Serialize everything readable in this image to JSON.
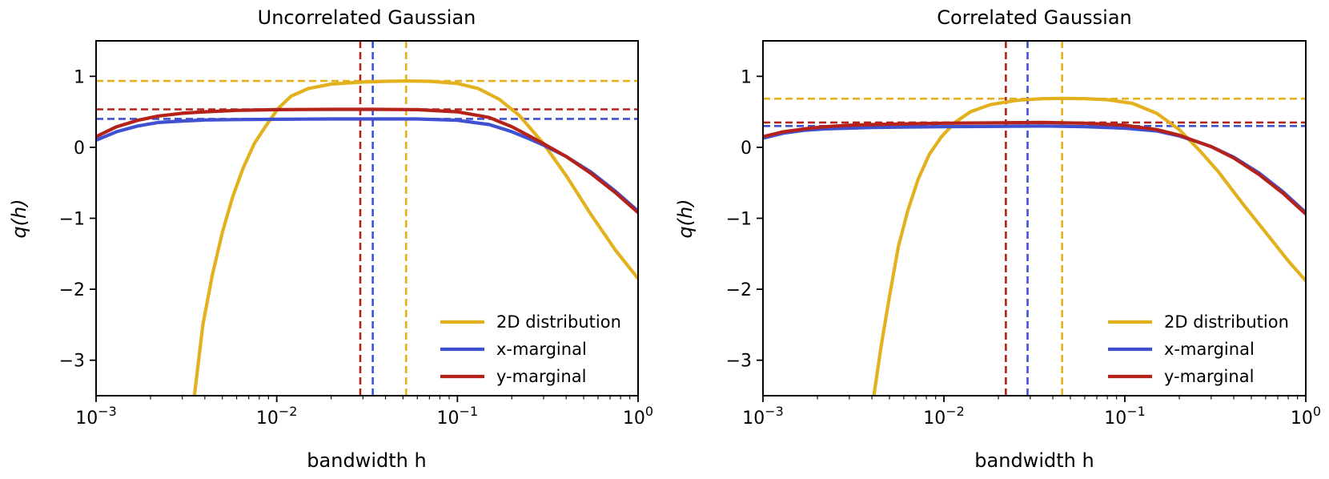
{
  "figure": {
    "colors": {
      "gold": "#e3b11e",
      "blue": "#3f51d1",
      "red": "#b5221a"
    }
  },
  "chart_data": [
    {
      "type": "line",
      "title": "Uncorrelated Gaussian",
      "xlabel": "bandwidth h",
      "ylabel": "q(h)",
      "xscale": "log",
      "xlim": [
        0.001,
        1
      ],
      "ylim": [
        -3.5,
        1.5
      ],
      "xticks": [
        0.001,
        0.01,
        0.1,
        1
      ],
      "xtick_labels": [
        [
          "10",
          "−3"
        ],
        [
          "10",
          "−2"
        ],
        [
          "10",
          "−1"
        ],
        [
          "10",
          "0"
        ]
      ],
      "yticks": [
        1,
        0,
        -1,
        -2,
        -3
      ],
      "ytick_labels": [
        "1",
        "0",
        "−1",
        "−2",
        "−3"
      ],
      "grid": false,
      "legend_position": "lower-right",
      "series": [
        {
          "name": "2D distribution",
          "color": "#e3b11e",
          "x": [
            0.0035,
            0.0039,
            0.0044,
            0.005,
            0.0057,
            0.0065,
            0.0075,
            0.0087,
            0.0102,
            0.012,
            0.015,
            0.02,
            0.03,
            0.04,
            0.052,
            0.07,
            0.1,
            0.13,
            0.17,
            0.22,
            0.3,
            0.4,
            0.55,
            0.75,
            1.0
          ],
          "y": [
            -3.5,
            -2.5,
            -1.8,
            -1.2,
            -0.7,
            -0.3,
            0.05,
            0.3,
            0.55,
            0.72,
            0.83,
            0.89,
            0.92,
            0.93,
            0.935,
            0.93,
            0.9,
            0.83,
            0.68,
            0.45,
            0.05,
            -0.4,
            -0.95,
            -1.45,
            -1.85
          ]
        },
        {
          "name": "x-marginal",
          "color": "#3f51d1",
          "x": [
            0.001,
            0.0013,
            0.0017,
            0.0022,
            0.003,
            0.004,
            0.006,
            0.01,
            0.02,
            0.035,
            0.06,
            0.1,
            0.15,
            0.2,
            0.25,
            0.3,
            0.4,
            0.55,
            0.75,
            1.0
          ],
          "y": [
            0.1,
            0.22,
            0.3,
            0.35,
            0.37,
            0.385,
            0.39,
            0.395,
            0.4,
            0.4,
            0.4,
            0.38,
            0.32,
            0.22,
            0.12,
            0.03,
            -0.13,
            -0.35,
            -0.62,
            -0.9
          ]
        },
        {
          "name": "y-marginal",
          "color": "#b5221a",
          "x": [
            0.001,
            0.0013,
            0.0017,
            0.0022,
            0.003,
            0.004,
            0.006,
            0.01,
            0.02,
            0.035,
            0.06,
            0.1,
            0.15,
            0.2,
            0.25,
            0.3,
            0.4,
            0.55,
            0.75,
            1.0
          ],
          "y": [
            0.15,
            0.29,
            0.38,
            0.44,
            0.48,
            0.5,
            0.52,
            0.53,
            0.535,
            0.535,
            0.53,
            0.5,
            0.42,
            0.29,
            0.16,
            0.05,
            -0.13,
            -0.37,
            -0.64,
            -0.92
          ]
        }
      ],
      "reference_lines": [
        {
          "orientation": "horizontal",
          "value": 0.935,
          "color": "#e3b11e"
        },
        {
          "orientation": "horizontal",
          "value": 0.535,
          "color": "#b5221a"
        },
        {
          "orientation": "horizontal",
          "value": 0.4,
          "color": "#3f51d1"
        },
        {
          "orientation": "vertical",
          "value": 0.029,
          "color": "#b5221a"
        },
        {
          "orientation": "vertical",
          "value": 0.034,
          "color": "#3f51d1"
        },
        {
          "orientation": "vertical",
          "value": 0.052,
          "color": "#e3b11e"
        }
      ]
    },
    {
      "type": "line",
      "title": "Correlated Gaussian",
      "xlabel": "bandwidth h",
      "ylabel": "q(h)",
      "xscale": "log",
      "xlim": [
        0.001,
        1
      ],
      "ylim": [
        -3.5,
        1.5
      ],
      "xticks": [
        0.001,
        0.01,
        0.1,
        1
      ],
      "xtick_labels": [
        [
          "10",
          "−3"
        ],
        [
          "10",
          "−2"
        ],
        [
          "10",
          "−1"
        ],
        [
          "10",
          "0"
        ]
      ],
      "yticks": [
        1,
        0,
        -1,
        -2,
        -3
      ],
      "ytick_labels": [
        "1",
        "0",
        "−1",
        "−2",
        "−3"
      ],
      "grid": false,
      "legend_position": "lower-right",
      "series": [
        {
          "name": "2D distribution",
          "color": "#e3b11e",
          "x": [
            0.0041,
            0.0045,
            0.005,
            0.0056,
            0.0063,
            0.0072,
            0.0083,
            0.0097,
            0.0115,
            0.014,
            0.018,
            0.025,
            0.035,
            0.045,
            0.06,
            0.08,
            0.11,
            0.15,
            0.2,
            0.26,
            0.33,
            0.45,
            0.6,
            0.8,
            1.0
          ],
          "y": [
            -3.5,
            -2.8,
            -2.1,
            -1.4,
            -0.9,
            -0.45,
            -0.1,
            0.15,
            0.35,
            0.5,
            0.6,
            0.66,
            0.685,
            0.69,
            0.685,
            0.67,
            0.62,
            0.48,
            0.25,
            -0.05,
            -0.35,
            -0.8,
            -1.2,
            -1.6,
            -1.88
          ]
        },
        {
          "name": "x-marginal",
          "color": "#3f51d1",
          "x": [
            0.001,
            0.0013,
            0.0017,
            0.0022,
            0.003,
            0.004,
            0.006,
            0.01,
            0.02,
            0.035,
            0.06,
            0.1,
            0.15,
            0.2,
            0.25,
            0.3,
            0.4,
            0.55,
            0.75,
            1.0
          ],
          "y": [
            0.13,
            0.2,
            0.24,
            0.26,
            0.27,
            0.28,
            0.285,
            0.29,
            0.295,
            0.3,
            0.29,
            0.27,
            0.23,
            0.16,
            0.08,
            0.01,
            -0.14,
            -0.36,
            -0.63,
            -0.92
          ]
        },
        {
          "name": "y-marginal",
          "color": "#b5221a",
          "x": [
            0.001,
            0.0013,
            0.0017,
            0.0022,
            0.003,
            0.004,
            0.006,
            0.01,
            0.02,
            0.035,
            0.06,
            0.1,
            0.15,
            0.2,
            0.25,
            0.3,
            0.4,
            0.55,
            0.75,
            1.0
          ],
          "y": [
            0.15,
            0.22,
            0.26,
            0.29,
            0.31,
            0.32,
            0.33,
            0.34,
            0.345,
            0.35,
            0.34,
            0.31,
            0.25,
            0.17,
            0.08,
            0.01,
            -0.15,
            -0.38,
            -0.65,
            -0.94
          ]
        }
      ],
      "reference_lines": [
        {
          "orientation": "horizontal",
          "value": 0.685,
          "color": "#e3b11e"
        },
        {
          "orientation": "horizontal",
          "value": 0.35,
          "color": "#b5221a"
        },
        {
          "orientation": "horizontal",
          "value": 0.3,
          "color": "#3f51d1"
        },
        {
          "orientation": "vertical",
          "value": 0.022,
          "color": "#b5221a"
        },
        {
          "orientation": "vertical",
          "value": 0.029,
          "color": "#3f51d1"
        },
        {
          "orientation": "vertical",
          "value": 0.045,
          "color": "#e3b11e"
        }
      ]
    }
  ]
}
